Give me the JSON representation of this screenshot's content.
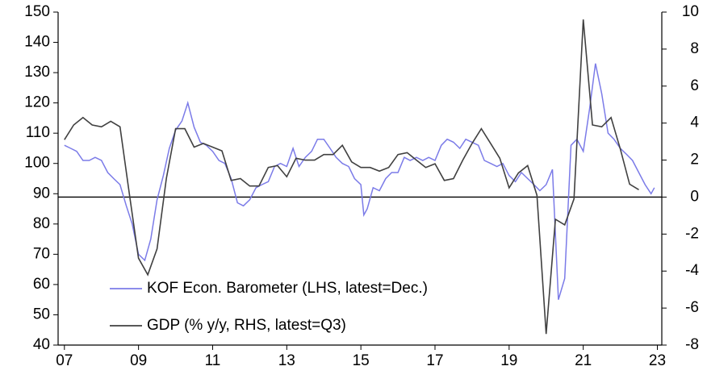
{
  "chart_data": {
    "type": "line",
    "xlim": [
      2006.83,
      2023.12
    ],
    "xticks": [
      {
        "value": 2007,
        "label": "07"
      },
      {
        "value": 2009,
        "label": "09"
      },
      {
        "value": 2011,
        "label": "11"
      },
      {
        "value": 2013,
        "label": "13"
      },
      {
        "value": 2015,
        "label": "15"
      },
      {
        "value": 2017,
        "label": "17"
      },
      {
        "value": 2019,
        "label": "19"
      },
      {
        "value": 2021,
        "label": "21"
      },
      {
        "value": 2023,
        "label": "23"
      }
    ],
    "ylim": [
      40,
      150
    ],
    "yticks": [
      40,
      50,
      60,
      70,
      80,
      90,
      100,
      110,
      120,
      130,
      140,
      150
    ],
    "y2lim": [
      -8,
      10
    ],
    "y2ticks": [
      -8,
      -6,
      -4,
      -2,
      0,
      2,
      4,
      6,
      8,
      10
    ],
    "legend": "lower left",
    "series": [
      {
        "name": "KOF Econ. Barometer (LHS, latest=Dec.)",
        "color": "#7b7be8",
        "x": [
          2007,
          2007.17,
          2007.33,
          2007.5,
          2007.67,
          2007.83,
          2008,
          2008.17,
          2008.33,
          2008.5,
          2008.67,
          2008.83,
          2009,
          2009.17,
          2009.33,
          2009.5,
          2009.67,
          2009.83,
          2010,
          2010.17,
          2010.33,
          2010.5,
          2010.67,
          2010.83,
          2011,
          2011.17,
          2011.33,
          2011.5,
          2011.67,
          2011.83,
          2012,
          2012.17,
          2012.33,
          2012.5,
          2012.67,
          2012.83,
          2013,
          2013.17,
          2013.33,
          2013.5,
          2013.67,
          2013.83,
          2014,
          2014.17,
          2014.33,
          2014.5,
          2014.67,
          2014.83,
          2015,
          2015.08,
          2015.17,
          2015.33,
          2015.5,
          2015.67,
          2015.83,
          2016,
          2016.17,
          2016.33,
          2016.5,
          2016.67,
          2016.83,
          2017,
          2017.17,
          2017.33,
          2017.5,
          2017.67,
          2017.83,
          2018,
          2018.17,
          2018.33,
          2018.5,
          2018.67,
          2018.83,
          2019,
          2019.17,
          2019.33,
          2019.5,
          2019.67,
          2019.83,
          2020,
          2020.17,
          2020.33,
          2020.5,
          2020.67,
          2020.83,
          2021,
          2021.17,
          2021.33,
          2021.5,
          2021.67,
          2021.83,
          2022,
          2022.17,
          2022.33,
          2022.5,
          2022.67,
          2022.83,
          2022.92
        ],
        "values": [
          106,
          105,
          104,
          101,
          101,
          102,
          101,
          97,
          95,
          93,
          86,
          80,
          70,
          68,
          75,
          88,
          96,
          105,
          111,
          114,
          120,
          112,
          107,
          106,
          104,
          101,
          100,
          95,
          87,
          86,
          88,
          92,
          93,
          94,
          99,
          100,
          99,
          105,
          99,
          102,
          104,
          108,
          108,
          105,
          102,
          100,
          99,
          95,
          93,
          83,
          85,
          92,
          91,
          95,
          97,
          97,
          102,
          101,
          102,
          101,
          102,
          101,
          106,
          108,
          107,
          105,
          108,
          107,
          106,
          101,
          100,
          99,
          100,
          96,
          94,
          97,
          95,
          93,
          91,
          93,
          98,
          55,
          62,
          106,
          108,
          104,
          118,
          133,
          123,
          110,
          108,
          105,
          103,
          101,
          97,
          93,
          90,
          92
        ]
      },
      {
        "name": "GDP (% y/y, RHS, latest=Q3)",
        "color": "#404040",
        "axis": "y2",
        "x": [
          2007,
          2007.25,
          2007.5,
          2007.75,
          2008,
          2008.25,
          2008.5,
          2008.75,
          2009,
          2009.25,
          2009.5,
          2009.75,
          2010,
          2010.25,
          2010.5,
          2010.75,
          2011,
          2011.25,
          2011.5,
          2011.75,
          2012,
          2012.25,
          2012.5,
          2012.75,
          2013,
          2013.25,
          2013.5,
          2013.75,
          2014,
          2014.25,
          2014.5,
          2014.75,
          2015,
          2015.25,
          2015.5,
          2015.75,
          2016,
          2016.25,
          2016.5,
          2016.75,
          2017,
          2017.25,
          2017.5,
          2017.75,
          2018,
          2018.25,
          2018.5,
          2018.75,
          2019,
          2019.25,
          2019.5,
          2019.75,
          2020,
          2020.25,
          2020.5,
          2020.75,
          2021,
          2021.25,
          2021.5,
          2021.75,
          2022,
          2022.25,
          2022.5
        ],
        "values": [
          3.1,
          3.9,
          4.3,
          3.9,
          3.8,
          4.1,
          3.8,
          0.2,
          -3.3,
          -4.2,
          -2.8,
          1.0,
          3.7,
          3.7,
          2.7,
          2.9,
          2.7,
          2.5,
          0.9,
          1.0,
          0.6,
          0.6,
          1.6,
          1.7,
          1.1,
          2.1,
          2.0,
          2.0,
          2.3,
          2.3,
          2.8,
          1.9,
          1.6,
          1.6,
          1.4,
          1.6,
          2.3,
          2.4,
          2.0,
          1.6,
          1.8,
          0.9,
          1.0,
          2.0,
          2.9,
          3.7,
          2.9,
          2.1,
          0.5,
          1.3,
          1.7,
          0.1,
          -7.4,
          -1.2,
          -1.5,
          -0.1,
          9.6,
          3.9,
          3.8,
          4.3,
          2.6,
          0.7,
          0.4
        ]
      }
    ]
  }
}
